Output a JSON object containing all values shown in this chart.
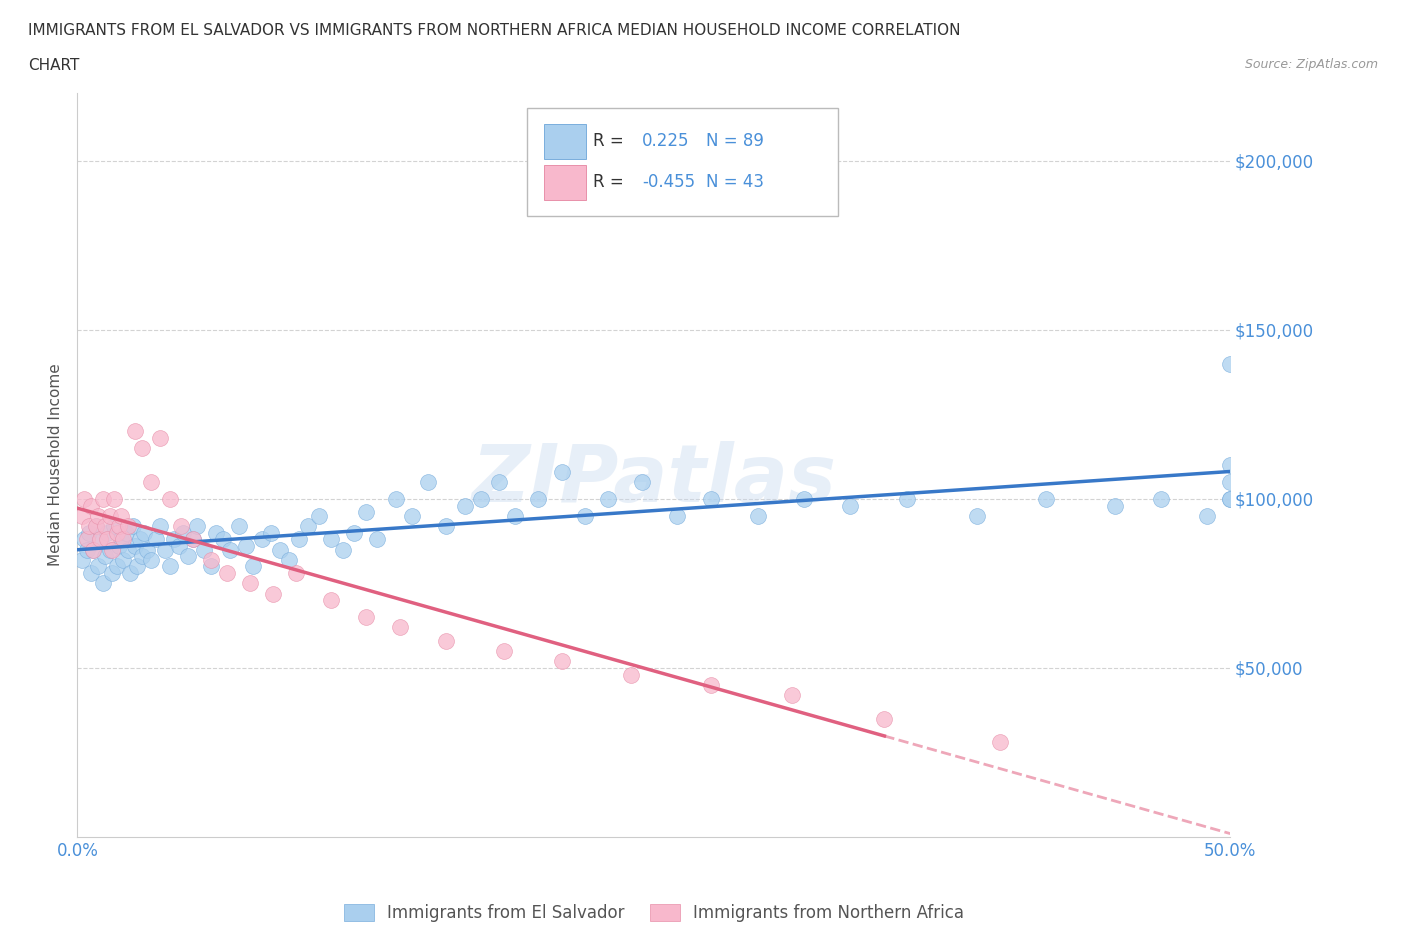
{
  "title_line1": "IMMIGRANTS FROM EL SALVADOR VS IMMIGRANTS FROM NORTHERN AFRICA MEDIAN HOUSEHOLD INCOME CORRELATION",
  "title_line2": "CHART",
  "source_text": "Source: ZipAtlas.com",
  "watermark": "ZIPatlas",
  "ylabel": "Median Household Income",
  "xlim": [
    0.0,
    0.5
  ],
  "ylim": [
    0,
    220000
  ],
  "ytick_positions": [
    50000,
    100000,
    150000,
    200000
  ],
  "ytick_labels": [
    "$50,000",
    "$100,000",
    "$150,000",
    "$200,000"
  ],
  "grid_color": "#c8c8c8",
  "background_color": "#ffffff",
  "series1_color": "#aacfee",
  "series1_edge": "#7aaedd",
  "series2_color": "#f8b8cc",
  "series2_edge": "#e890aa",
  "series1_label": "Immigrants from El Salvador",
  "series2_label": "Immigrants from Northern Africa",
  "series1_R": 0.225,
  "series1_N": 89,
  "series2_R": -0.455,
  "series2_N": 43,
  "series1_line_color": "#3878c8",
  "series2_line_color": "#e06080",
  "series1_x": [
    0.002,
    0.003,
    0.004,
    0.005,
    0.006,
    0.007,
    0.008,
    0.009,
    0.01,
    0.011,
    0.012,
    0.013,
    0.014,
    0.015,
    0.016,
    0.017,
    0.018,
    0.019,
    0.02,
    0.021,
    0.022,
    0.023,
    0.024,
    0.025,
    0.026,
    0.027,
    0.028,
    0.029,
    0.03,
    0.032,
    0.034,
    0.036,
    0.038,
    0.04,
    0.042,
    0.044,
    0.046,
    0.048,
    0.05,
    0.052,
    0.055,
    0.058,
    0.06,
    0.063,
    0.066,
    0.07,
    0.073,
    0.076,
    0.08,
    0.084,
    0.088,
    0.092,
    0.096,
    0.1,
    0.105,
    0.11,
    0.115,
    0.12,
    0.125,
    0.13,
    0.138,
    0.145,
    0.152,
    0.16,
    0.168,
    0.175,
    0.183,
    0.19,
    0.2,
    0.21,
    0.22,
    0.23,
    0.245,
    0.26,
    0.275,
    0.295,
    0.315,
    0.335,
    0.36,
    0.39,
    0.42,
    0.45,
    0.47,
    0.49,
    0.5,
    0.5,
    0.5,
    0.5,
    0.5
  ],
  "series1_y": [
    82000,
    88000,
    85000,
    90000,
    78000,
    85000,
    92000,
    80000,
    88000,
    75000,
    83000,
    90000,
    85000,
    78000,
    92000,
    80000,
    86000,
    88000,
    82000,
    90000,
    85000,
    78000,
    92000,
    86000,
    80000,
    88000,
    83000,
    90000,
    85000,
    82000,
    88000,
    92000,
    85000,
    80000,
    88000,
    86000,
    90000,
    83000,
    88000,
    92000,
    85000,
    80000,
    90000,
    88000,
    85000,
    92000,
    86000,
    80000,
    88000,
    90000,
    85000,
    82000,
    88000,
    92000,
    95000,
    88000,
    85000,
    90000,
    96000,
    88000,
    100000,
    95000,
    105000,
    92000,
    98000,
    100000,
    105000,
    95000,
    100000,
    108000,
    95000,
    100000,
    105000,
    95000,
    100000,
    95000,
    100000,
    98000,
    100000,
    95000,
    100000,
    98000,
    100000,
    95000,
    100000,
    105000,
    100000,
    140000,
    110000
  ],
  "series2_x": [
    0.002,
    0.003,
    0.004,
    0.005,
    0.006,
    0.007,
    0.008,
    0.009,
    0.01,
    0.011,
    0.012,
    0.013,
    0.014,
    0.015,
    0.016,
    0.017,
    0.018,
    0.019,
    0.02,
    0.022,
    0.025,
    0.028,
    0.032,
    0.036,
    0.04,
    0.045,
    0.05,
    0.058,
    0.065,
    0.075,
    0.085,
    0.095,
    0.11,
    0.125,
    0.14,
    0.16,
    0.185,
    0.21,
    0.24,
    0.275,
    0.31,
    0.35,
    0.4
  ],
  "series2_y": [
    95000,
    100000,
    88000,
    92000,
    98000,
    85000,
    92000,
    95000,
    88000,
    100000,
    92000,
    88000,
    95000,
    85000,
    100000,
    90000,
    92000,
    95000,
    88000,
    92000,
    120000,
    115000,
    105000,
    118000,
    100000,
    92000,
    88000,
    82000,
    78000,
    75000,
    72000,
    78000,
    70000,
    65000,
    62000,
    58000,
    55000,
    52000,
    48000,
    45000,
    42000,
    35000,
    28000
  ]
}
